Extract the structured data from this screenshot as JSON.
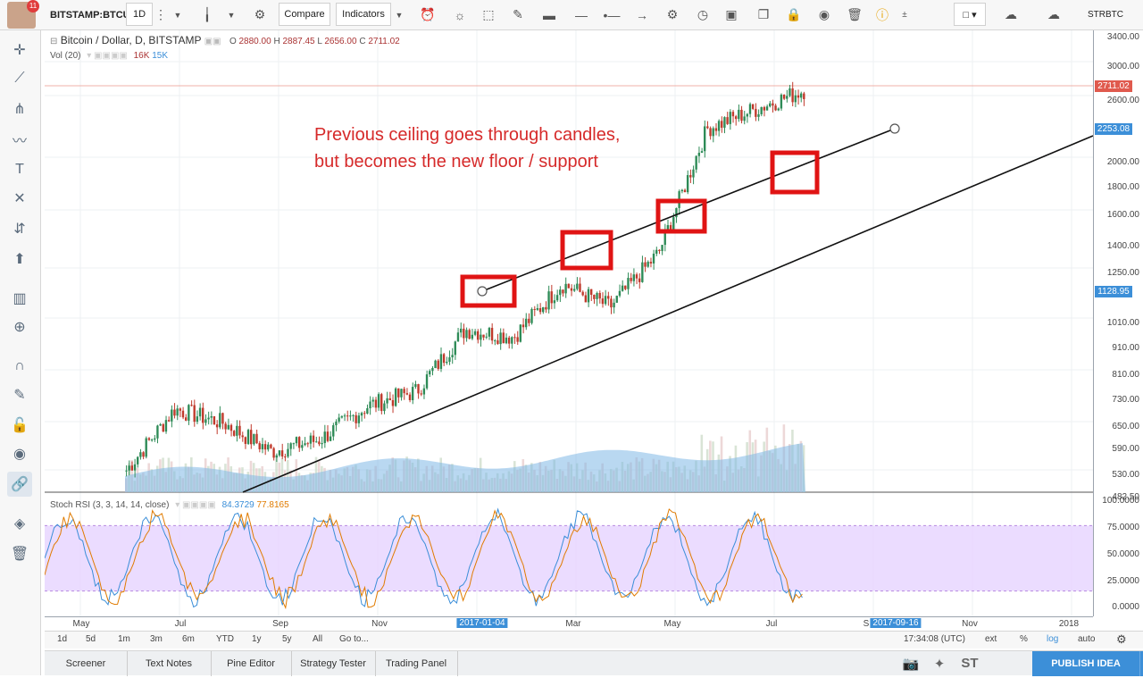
{
  "toolbar": {
    "symbol": "BITSTAMP:BTCU",
    "interval": "1D",
    "compare": "Compare",
    "indicators": "Indicators",
    "right_symbol": "STRBTC"
  },
  "user": {
    "notifications": "11"
  },
  "legend": {
    "title": "Bitcoin / Dollar, D, BITSTAMP",
    "open_label": "O",
    "open": "2880.00",
    "high_label": "H",
    "high": "2887.45",
    "low_label": "L",
    "low": "2656.00",
    "close_label": "C",
    "close": "2711.02",
    "vol_label": "Vol (20)",
    "vol_a": "16K",
    "vol_b": "15K"
  },
  "annotation": {
    "line1": "Previous ceiling goes through candles,",
    "line2": "but becomes the new floor / support"
  },
  "rsi": {
    "label": "Stoch RSI (3, 3, 14, 14, close)",
    "k": "84.3729",
    "d": "77.8165"
  },
  "price_axis": {
    "ticks": [
      "3400.00",
      "3000.00",
      "2600.00",
      "2000.00",
      "1800.00",
      "1600.00",
      "1400.00",
      "1250.00",
      "1010.00",
      "910.00",
      "810.00",
      "730.00",
      "650.00",
      "590.00",
      "530.00",
      "482.50"
    ],
    "current_price": "2711.02",
    "trend_price_1": "2253.08",
    "trend_price_2": "1128.95",
    "rsi_ticks": [
      "100.0000",
      "75.0000",
      "50.0000",
      "25.0000",
      "0.0000"
    ]
  },
  "time_axis": {
    "labels": [
      "May",
      "Jul",
      "Sep",
      "Nov",
      "2017-01-04",
      "Mar",
      "May",
      "Jul",
      "S",
      "2017-09-16",
      "Nov",
      "2018"
    ]
  },
  "bottom_bar": {
    "ranges": [
      "1d",
      "5d",
      "1m",
      "3m",
      "6m",
      "YTD",
      "1y",
      "5y",
      "All"
    ],
    "goto": "Go to...",
    "clock": "17:34:08 (UTC)",
    "ext": "ext",
    "pct": "%",
    "log": "log",
    "auto": "auto"
  },
  "tabs": [
    "Screener",
    "Text Notes",
    "Pine Editor",
    "Strategy Tester",
    "Trading Panel"
  ],
  "publish": "PUBLISH IDEA",
  "chart_data": {
    "type": "candlestick",
    "title": "Bitcoin / Dollar, D, BITSTAMP",
    "scale": "log",
    "ylim": [
      482.5,
      3400
    ],
    "ohlc_last": {
      "open": 2880.0,
      "high": 2887.45,
      "low": 2656.0,
      "close": 2711.02
    },
    "dates": [
      "2016-05",
      "2016-06",
      "2016-07",
      "2016-08",
      "2016-09",
      "2016-10",
      "2016-11",
      "2016-12",
      "2017-01",
      "2017-02",
      "2017-03",
      "2017-04",
      "2017-05",
      "2017-06",
      "2017-07"
    ],
    "close": [
      530,
      690,
      650,
      575,
      605,
      700,
      745,
      970,
      940,
      1180,
      1070,
      1350,
      2300,
      2500,
      2711
    ],
    "trendlines": [
      {
        "from": [
          "2017-01-04",
          1128.95
        ],
        "to": [
          "2017-09-16",
          2253.08
        ]
      },
      {
        "from": [
          "2016-08-01",
          482.5
        ],
        "to": [
          "2018-01-01",
          2100
        ]
      }
    ],
    "highlight_boxes": [
      "2017-01",
      "2017-03",
      "2017-05",
      "2017-07"
    ],
    "indicator": {
      "name": "Stoch RSI (3, 3, 14, 14, close)",
      "k": 84.3729,
      "d": 77.8165,
      "bands": [
        20,
        80
      ]
    }
  }
}
